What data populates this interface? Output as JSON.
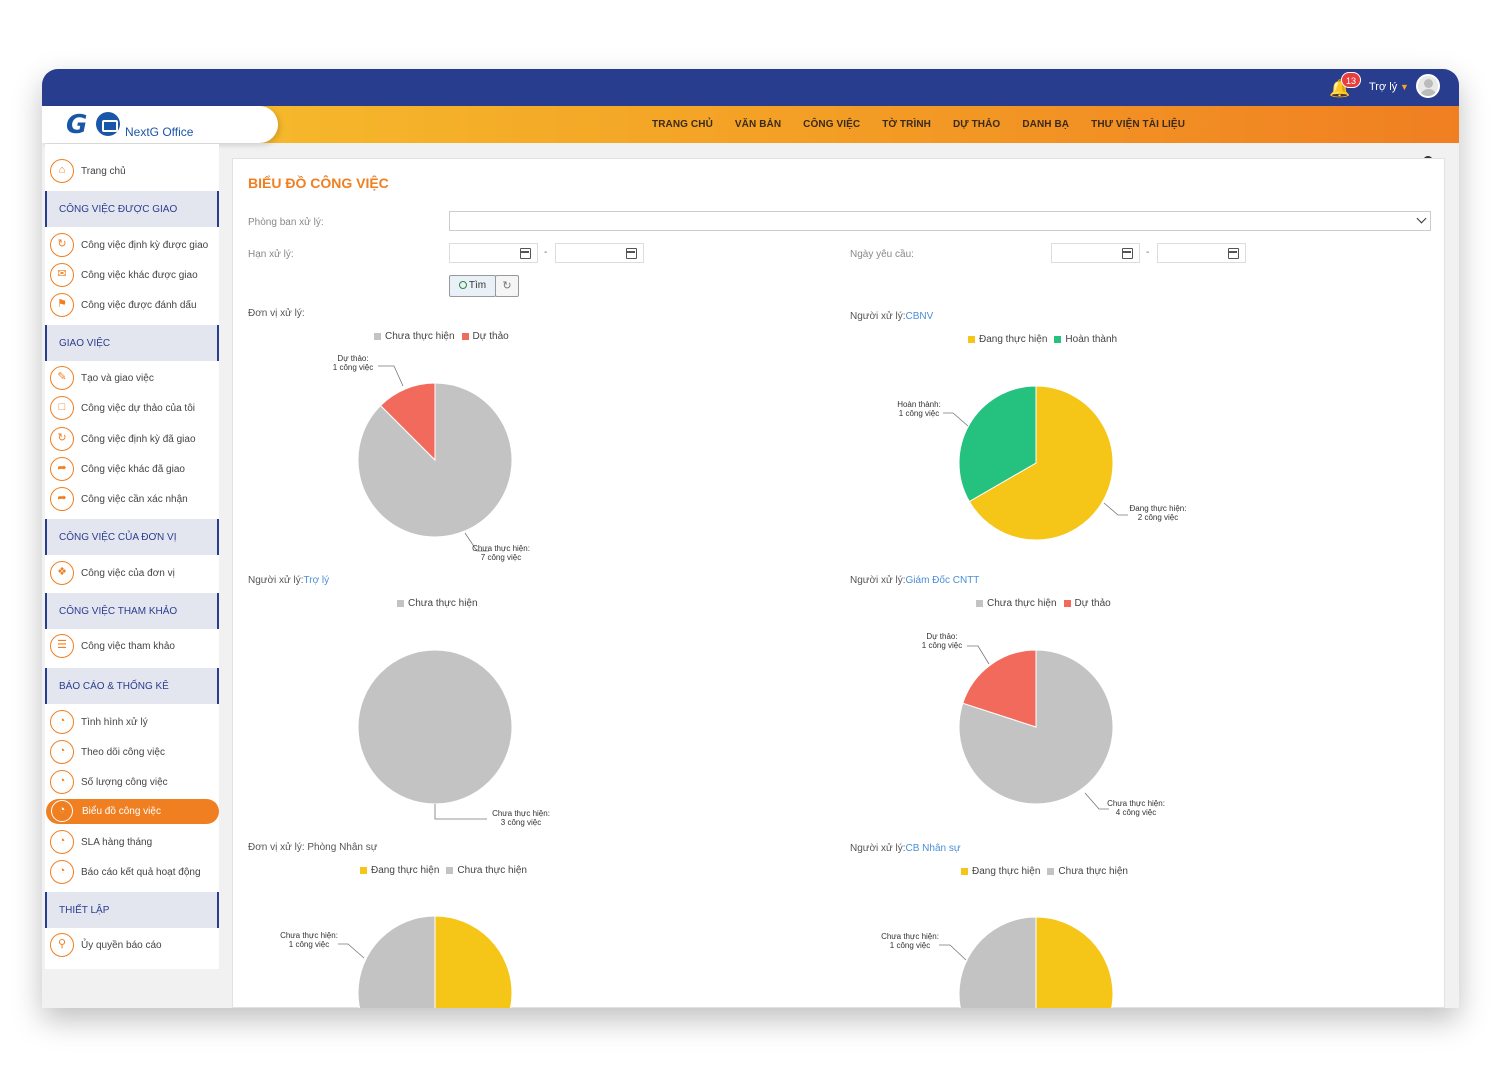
{
  "header": {
    "notification_count": "13",
    "user_name": "Trợ lý",
    "logo_text": "NextG Office",
    "menu": [
      "TRANG CHỦ",
      "VĂN BẢN",
      "CÔNG VIỆC",
      "TỜ TRÌNH",
      "DỰ THẢO",
      "DANH BẠ",
      "THƯ VIỆN TÀI LIỆU"
    ]
  },
  "sidebar": {
    "home": "Trang chủ",
    "sections": [
      {
        "title": "CÔNG VIỆC ĐƯỢC GIAO",
        "items": [
          "Công việc định kỳ được giao",
          "Công việc khác được giao",
          "Công việc được đánh dấu"
        ]
      },
      {
        "title": "GIAO VIỆC",
        "items": [
          "Tạo và giao việc",
          "Công việc dự thảo của tôi",
          "Công việc định kỳ đã giao",
          "Công việc khác đã giao",
          "Công việc cần xác nhận"
        ]
      },
      {
        "title": "CÔNG VIỆC CỦA ĐƠN VỊ",
        "items": [
          "Công việc của đơn vị"
        ]
      },
      {
        "title": "CÔNG VIỆC THAM KHẢO",
        "items": [
          "Công việc tham khảo"
        ]
      },
      {
        "title": "BÁO CÁO & THỐNG KÊ",
        "items": [
          "Tình hình xử lý",
          "Theo dõi công việc",
          "Số lượng công việc",
          "Biểu đồ công việc",
          "SLA hàng tháng",
          "Báo cáo kết quả hoạt động"
        ]
      },
      {
        "title": "THIẾT LẬP",
        "items": [
          "Ủy quyền báo cáo"
        ]
      }
    ],
    "active_item": "Biểu đồ công việc"
  },
  "page": {
    "title": "BIỂU ĐỒ CÔNG VIỆC",
    "filters": {
      "department_label": "Phòng ban xử lý:",
      "deadline_label": "Hạn xử lý:",
      "request_date_label": "Ngày yêu cầu:",
      "dash": "-",
      "search_button": "Tìm"
    }
  },
  "colors": {
    "gray": "#c3c3c3",
    "red": "#f26a5b",
    "yellow": "#f5c518",
    "green": "#25c17e",
    "accent": "#f07f22",
    "navy": "#293d8f"
  },
  "chart_data": [
    {
      "type": "pie",
      "title_prefix": "Đơn vị xử lý:",
      "title_link": "",
      "legend": [
        {
          "name": "Chưa thực hiện",
          "color": "#c3c3c3"
        },
        {
          "name": "Dự thảo",
          "color": "#f26a5b"
        }
      ],
      "slices": [
        {
          "name": "Chưa thực hiện",
          "value": 7,
          "label": "Chưa thực hiện:",
          "sublabel": "7 công việc",
          "color": "#c3c3c3"
        },
        {
          "name": "Dự thảo",
          "value": 1,
          "label": "Dự thảo:",
          "sublabel": "1 công việc",
          "color": "#f26a5b"
        }
      ]
    },
    {
      "type": "pie",
      "title_prefix": "Người xử lý:",
      "title_link": "CBNV",
      "legend": [
        {
          "name": "Đang thực hiện",
          "color": "#f5c518"
        },
        {
          "name": "Hoàn thành",
          "color": "#25c17e"
        }
      ],
      "slices": [
        {
          "name": "Đang thực hiện",
          "value": 2,
          "label": "Đang thực hiện:",
          "sublabel": "2 công việc",
          "color": "#f5c518"
        },
        {
          "name": "Hoàn thành",
          "value": 1,
          "label": "Hoàn thành:",
          "sublabel": "1 công việc",
          "color": "#25c17e"
        }
      ]
    },
    {
      "type": "pie",
      "title_prefix": "Người xử lý:",
      "title_link": "Trợ lý",
      "legend": [
        {
          "name": "Chưa thực hiện",
          "color": "#c3c3c3"
        }
      ],
      "slices": [
        {
          "name": "Chưa thực hiện",
          "value": 3,
          "label": "Chưa thực hiện:",
          "sublabel": "3 công việc",
          "color": "#c3c3c3"
        }
      ]
    },
    {
      "type": "pie",
      "title_prefix": "Người xử lý:",
      "title_link": "Giám Đốc CNTT",
      "legend": [
        {
          "name": "Chưa thực hiện",
          "color": "#c3c3c3"
        },
        {
          "name": "Dự thảo",
          "color": "#f26a5b"
        }
      ],
      "slices": [
        {
          "name": "Chưa thực hiện",
          "value": 4,
          "label": "Chưa thực hiện:",
          "sublabel": "4 công việc",
          "color": "#c3c3c3"
        },
        {
          "name": "Dự thảo",
          "value": 1,
          "label": "Dự thảo:",
          "sublabel": "1 công việc",
          "color": "#f26a5b"
        }
      ]
    },
    {
      "type": "pie",
      "title_prefix": "Đơn vị xử lý: Phòng Nhân sự",
      "title_link": "",
      "legend": [
        {
          "name": "Đang thực hiện",
          "color": "#f5c518"
        },
        {
          "name": "Chưa thực hiện",
          "color": "#c3c3c3"
        }
      ],
      "slices": [
        {
          "name": "Đang thực hiện",
          "value": 1,
          "label": "",
          "sublabel": "",
          "color": "#f5c518"
        },
        {
          "name": "Chưa thực hiện",
          "value": 1,
          "label": "Chưa thực hiện:",
          "sublabel": "1 công việc",
          "color": "#c3c3c3"
        }
      ]
    },
    {
      "type": "pie",
      "title_prefix": "Người xử lý:",
      "title_link": "CB Nhân sự",
      "legend": [
        {
          "name": "Đang thực hiện",
          "color": "#f5c518"
        },
        {
          "name": "Chưa thực hiện",
          "color": "#c3c3c3"
        }
      ],
      "slices": [
        {
          "name": "Đang thực hiện",
          "value": 1,
          "label": "",
          "sublabel": "",
          "color": "#f5c518"
        },
        {
          "name": "Chưa thực hiện",
          "value": 1,
          "label": "Chưa thực hiện:",
          "sublabel": "1 công việc",
          "color": "#c3c3c3"
        }
      ]
    }
  ]
}
